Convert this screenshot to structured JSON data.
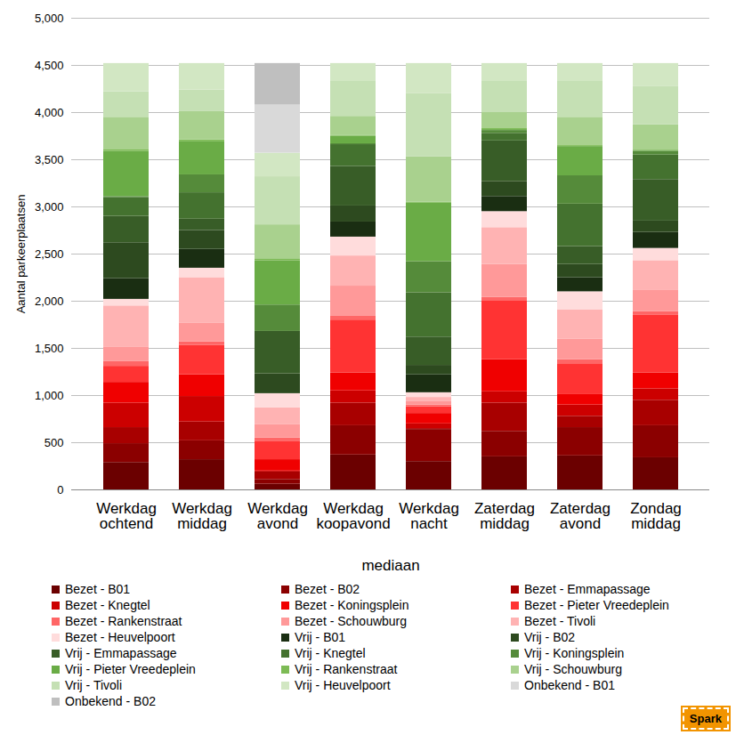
{
  "chart_data": {
    "type": "bar",
    "stacked": true,
    "x_label": "mediaan",
    "y_label": "Aantal parkeerplaatsen",
    "categories": [
      "Werkdag ochtend",
      "Werkdag middag",
      "Werkdag avond",
      "Werkdag koopavond",
      "Werkdag nacht",
      "Zaterdag middag",
      "Zaterdag avond",
      "Zondag middag"
    ],
    "ylim": [
      0,
      5000
    ],
    "yticks": [
      0,
      500,
      1000,
      1500,
      2000,
      2500,
      3000,
      3500,
      4000,
      4500,
      5000
    ],
    "grid": true,
    "legend": "bottom",
    "annotations": [
      {
        "text": "Spark"
      }
    ],
    "series": [
      {
        "name": "Bezet - B01",
        "color": "#6b0000",
        "values": [
          290,
          320,
          60,
          370,
          300,
          350,
          360,
          340
        ]
      },
      {
        "name": "Bezet - B02",
        "color": "#8b0000",
        "values": [
          200,
          200,
          50,
          310,
          340,
          270,
          300,
          340
        ]
      },
      {
        "name": "Bezet - Emmapassage",
        "color": "#a80000",
        "values": [
          170,
          200,
          80,
          240,
          10,
          300,
          120,
          270
        ]
      },
      {
        "name": "Bezet - Knegtel",
        "color": "#cc0000",
        "values": [
          260,
          270,
          10,
          130,
          50,
          120,
          120,
          120
        ]
      },
      {
        "name": "Bezet - Koningsplein",
        "color": "#f00000",
        "values": [
          220,
          230,
          120,
          190,
          110,
          340,
          110,
          170
        ]
      },
      {
        "name": "Bezet - Pieter Vreedeplein",
        "color": "#ff3333",
        "values": [
          170,
          310,
          190,
          560,
          70,
          620,
          320,
          610
        ]
      },
      {
        "name": "Bezet - Rankenstraat",
        "color": "#ff6666",
        "values": [
          50,
          40,
          40,
          40,
          20,
          40,
          50,
          40
        ]
      },
      {
        "name": "Bezet - Schouwburg",
        "color": "#ff9999",
        "values": [
          150,
          200,
          140,
          320,
          40,
          350,
          220,
          230
        ]
      },
      {
        "name": "Bezet - Tivoli",
        "color": "#ffb3b3",
        "values": [
          440,
          480,
          180,
          320,
          40,
          390,
          310,
          310
        ]
      },
      {
        "name": "Bezet - Heuvelpoort",
        "color": "#ffdcdc",
        "values": [
          70,
          100,
          150,
          200,
          50,
          170,
          190,
          130
        ]
      },
      {
        "name": "Vrij - B01",
        "color": "#1a2e12",
        "values": [
          220,
          200,
          0,
          160,
          190,
          160,
          150,
          170
        ]
      },
      {
        "name": "Vrij - B02",
        "color": "#2d4a1f",
        "values": [
          380,
          200,
          210,
          170,
          100,
          160,
          140,
          120
        ]
      },
      {
        "name": "Vrij - Emmapassage",
        "color": "#385d27",
        "values": [
          280,
          120,
          450,
          420,
          300,
          430,
          190,
          440
        ]
      },
      {
        "name": "Vrij - Knegtel",
        "color": "#44722f",
        "values": [
          200,
          280,
          0,
          230,
          470,
          80,
          450,
          260
        ]
      },
      {
        "name": "Vrij - Koningsplein",
        "color": "#558b3a",
        "values": [
          10,
          190,
          280,
          10,
          330,
          30,
          300,
          40
        ]
      },
      {
        "name": "Vrij - Pieter Vreedeplein",
        "color": "#6aac46",
        "values": [
          480,
          350,
          470,
          80,
          620,
          10,
          310,
          10
        ]
      },
      {
        "name": "Vrij - Rankenstraat",
        "color": "#7dbb55",
        "values": [
          20,
          20,
          20,
          10,
          10,
          10,
          10,
          10
        ]
      },
      {
        "name": "Vrij - Schouwburg",
        "color": "#a9d18e",
        "values": [
          340,
          300,
          360,
          200,
          480,
          170,
          300,
          260
        ]
      },
      {
        "name": "Vrij - Tivoli",
        "color": "#c5e0b4",
        "values": [
          270,
          230,
          510,
          370,
          670,
          330,
          380,
          410
        ]
      },
      {
        "name": "Vrij - Heuvelpoort",
        "color": "#d2e7c3",
        "values": [
          300,
          280,
          250,
          190,
          320,
          190,
          190,
          240
        ]
      },
      {
        "name": "Onbekend - B01",
        "color": "#d9d9d9",
        "values": [
          0,
          0,
          510,
          0,
          0,
          0,
          0,
          0
        ]
      },
      {
        "name": "Onbekend - B02",
        "color": "#bfbfbf",
        "values": [
          0,
          0,
          440,
          0,
          0,
          0,
          0,
          0
        ]
      }
    ]
  }
}
